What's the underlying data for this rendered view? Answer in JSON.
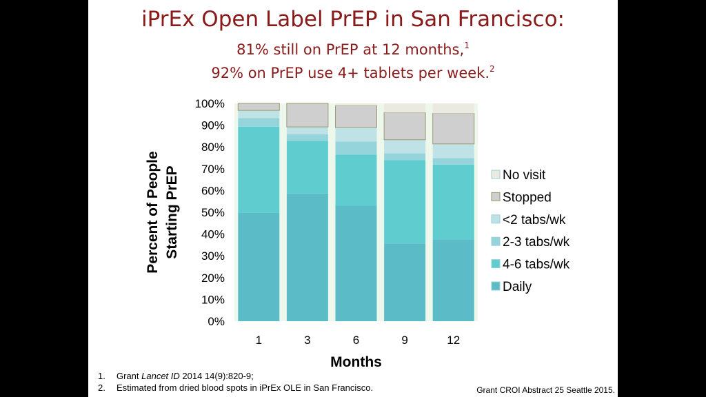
{
  "slide": {
    "title": "iPrEx Open Label PrEP in San Francisco:",
    "subtitle_line1": "81% still on PrEP at 12 months,",
    "subtitle_line1_sup": "1",
    "subtitle_line2": "92% on PrEP use 4+ tablets per week.",
    "subtitle_line2_sup": "2",
    "references": [
      {
        "num": "1.",
        "pre": "Grant ",
        "italic": "Lancet ID",
        "post": " 2014 14(9):820-9;"
      },
      {
        "num": "2.",
        "pre": "Estimated from dried blood spots in iPrEx OLE in San Francisco.",
        "italic": "",
        "post": ""
      }
    ],
    "citation": "Grant CROI Abstract 25 Seattle 2015."
  },
  "chart_data": {
    "type": "bar",
    "stacked": true,
    "title": "",
    "xlabel": "Months",
    "ylabel": "Percent of People Starting PrEP",
    "ylabel_lines": [
      "Percent of People",
      "Starting PrEP"
    ],
    "categories": [
      "1",
      "3",
      "6",
      "9",
      "12"
    ],
    "ylim": [
      0,
      100
    ],
    "yticks": [
      "0%",
      "10%",
      "20%",
      "30%",
      "40%",
      "50%",
      "60%",
      "70%",
      "80%",
      "90%",
      "100%"
    ],
    "legend_position": "right",
    "series": [
      {
        "name": "Daily",
        "color": "#5bbcc7",
        "values": [
          49.7,
          58.6,
          53,
          35.7,
          37.6
        ]
      },
      {
        "name": "4-6 tabs/wk",
        "color": "#5fcdd0",
        "values": [
          39.6,
          24.2,
          23.5,
          38.3,
          34.3
        ]
      },
      {
        "name": "2-3 tabs/wk",
        "color": "#96d4dc",
        "values": [
          3.9,
          3,
          6,
          3.1,
          3
        ]
      },
      {
        "name": "<2 tabs/wk",
        "color": "#bfe2e6",
        "values": [
          3.6,
          3.4,
          6.5,
          6.2,
          6.5
        ]
      },
      {
        "name": "Stopped",
        "color": "#cfcfcf",
        "values": [
          3.2,
          10.8,
          10,
          12.5,
          14
        ]
      },
      {
        "name": "No visit",
        "color": "#eaeae0",
        "values": [
          0,
          0,
          1,
          4.2,
          4.6
        ]
      }
    ]
  }
}
